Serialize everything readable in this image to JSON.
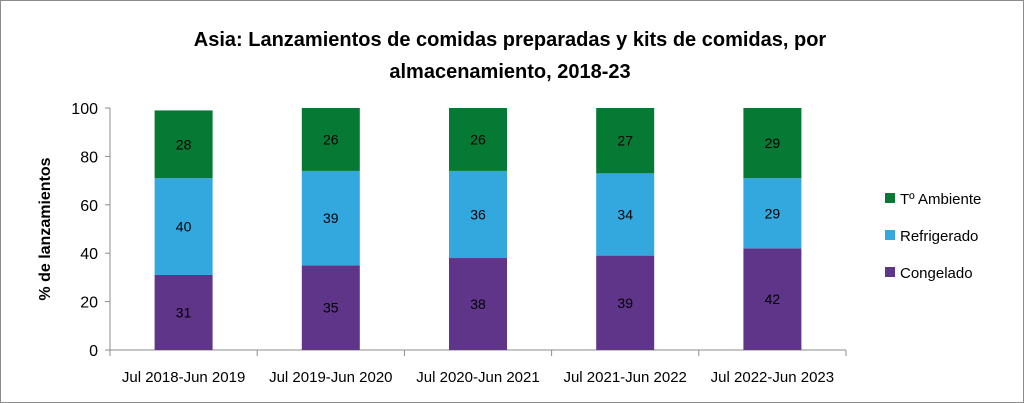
{
  "chart_data": {
    "type": "bar",
    "stacked": true,
    "title_lines": [
      "Asia: Lanzamientos de comidas preparadas y kits de comidas, por",
      "almacenamiento, 2018-23"
    ],
    "xlabel": "",
    "ylabel": "% de lanzamientos",
    "ylim": [
      0,
      100
    ],
    "yticks": [
      0,
      20,
      40,
      60,
      80,
      100
    ],
    "grid": false,
    "legend_position": "right",
    "categories": [
      "Jul 2018-Jun 2019",
      "Jul 2019-Jun 2020",
      "Jul 2020-Jun 2021",
      "Jul 2021-Jun 2022",
      "Jul 2022-Jun 2023"
    ],
    "series": [
      {
        "name": "Congelado",
        "color": "#5f3589",
        "values": [
          31,
          35,
          38,
          39,
          42
        ]
      },
      {
        "name": "Refrigerado",
        "color": "#33a8df",
        "values": [
          40,
          39,
          36,
          34,
          29
        ]
      },
      {
        "name": "Tº Ambiente",
        "color": "#067934",
        "values": [
          28,
          26,
          26,
          27,
          29
        ]
      }
    ],
    "legend_order": [
      "Tº Ambiente",
      "Refrigerado",
      "Congelado"
    ]
  }
}
